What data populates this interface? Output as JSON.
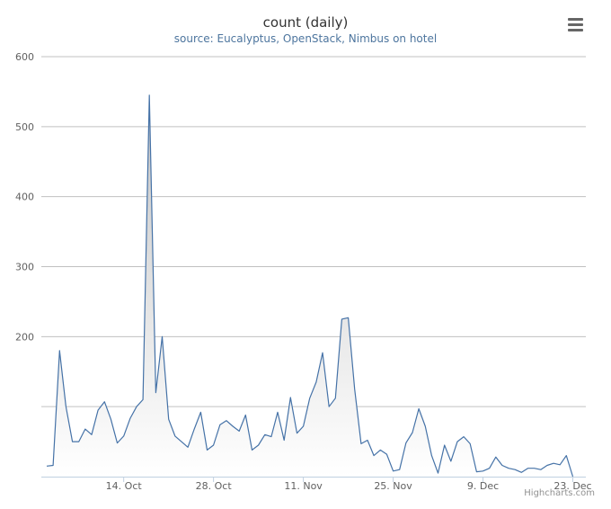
{
  "header": {
    "title": "count (daily)",
    "subtitle": "source: Eucalyptus, OpenStack, Nimbus on hotel",
    "menu_icon": "hamburger-menu-icon"
  },
  "credits": "Highcharts.com",
  "colors": {
    "line": "#4572a7",
    "fill_top": "#c8c8c8",
    "fill_bottom": "#ffffff",
    "grid": "#c0c0c0",
    "axis": "#c0d0e0"
  },
  "chart_data": {
    "type": "area",
    "title": "count (daily)",
    "subtitle": "source: Eucalyptus, OpenStack, Nimbus on hotel",
    "xlabel": "",
    "ylabel": "",
    "ylim": [
      0,
      600
    ],
    "y_ticks": [
      "600",
      "500",
      "400",
      "300",
      "200"
    ],
    "x_ticks": [
      "14. Oct",
      "28. Oct",
      "11. Nov",
      "25. Nov",
      "9. Dec",
      "23. Dec"
    ],
    "grid": true,
    "legend": "none",
    "x_start": "2013-10-02",
    "series": [
      {
        "values": [
          15,
          16,
          180,
          100,
          50,
          50,
          68,
          60,
          95,
          107,
          82,
          48,
          58,
          83,
          100,
          110,
          545,
          120,
          200,
          82,
          58,
          50,
          42,
          68,
          92,
          38,
          45,
          74,
          80,
          72,
          65,
          88,
          38,
          45,
          60,
          57,
          92,
          52,
          113,
          62,
          72,
          112,
          135,
          177,
          100,
          112,
          225,
          227,
          125,
          47,
          52,
          30,
          38,
          32,
          8,
          10,
          48,
          63,
          97,
          72,
          30,
          5,
          45,
          22,
          50,
          57,
          47,
          7,
          8,
          12,
          28,
          16,
          12,
          10,
          6,
          12,
          12,
          10,
          16,
          19,
          17,
          30,
          0
        ]
      }
    ]
  }
}
